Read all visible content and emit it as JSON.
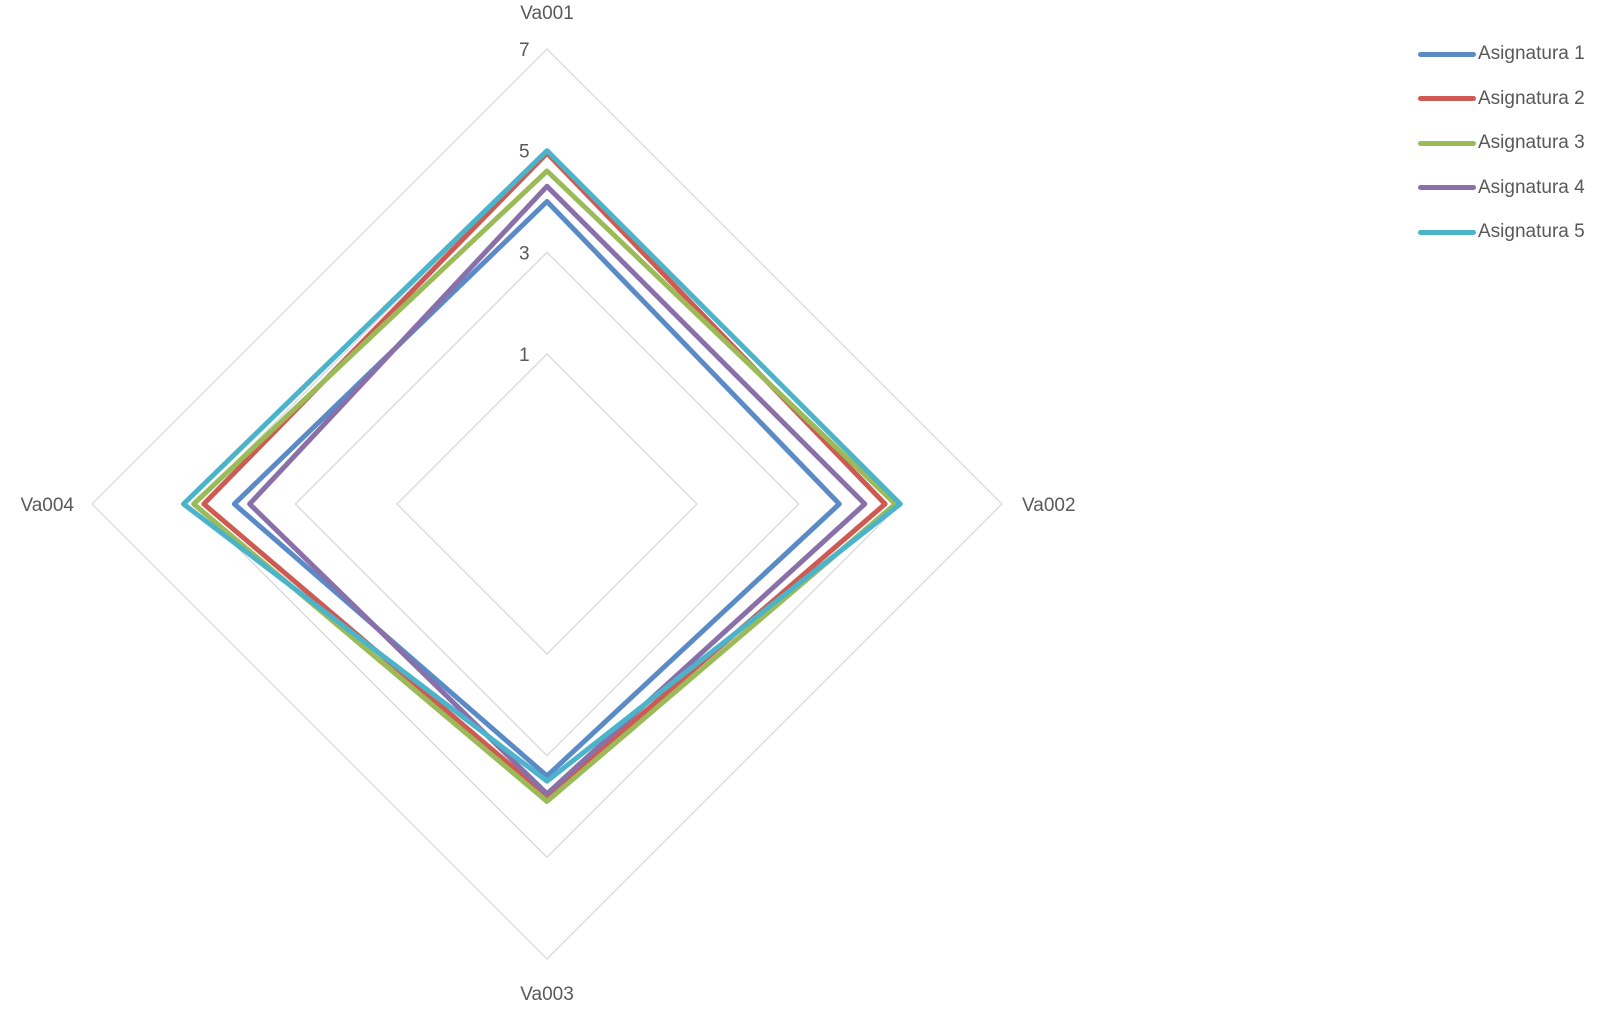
{
  "chart_data": {
    "type": "radar",
    "axes": [
      "Va001",
      "Va002",
      "Va003",
      "Va004"
    ],
    "rlim": [
      1,
      7
    ],
    "ticks": [
      "1",
      "3",
      "5",
      "7"
    ],
    "tick_values": [
      1,
      3,
      5,
      7
    ],
    "grid": true,
    "legend_position": "top-right",
    "series": [
      {
        "name": "Asignatura 1",
        "color": "#5b8bc6",
        "values": [
          4.0,
          3.8,
          3.4,
          4.2
        ]
      },
      {
        "name": "Asignatura 2",
        "color": "#ce5b53",
        "values": [
          4.95,
          4.7,
          3.8,
          4.8
        ]
      },
      {
        "name": "Asignatura 3",
        "color": "#9bbb59",
        "values": [
          4.6,
          4.9,
          3.9,
          5.0
        ]
      },
      {
        "name": "Asignatura 4",
        "color": "#8970a8",
        "values": [
          4.3,
          4.3,
          3.75,
          3.9
        ]
      },
      {
        "name": "Asignatura 5",
        "color": "#4bb4cb",
        "values": [
          5.0,
          5.0,
          3.5,
          5.2
        ]
      }
    ]
  }
}
